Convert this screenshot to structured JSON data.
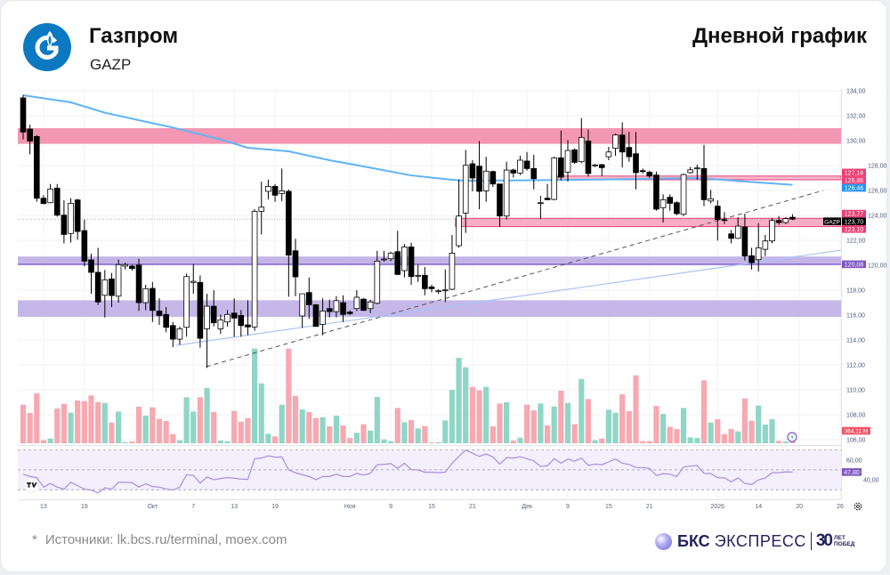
{
  "header": {
    "company": "Газпром",
    "ticker": "GAZP",
    "chart_type": "Дневной график"
  },
  "footer": {
    "star": "*",
    "source": "Источники: lk.bcs.ru/terminal, moex.com"
  },
  "brand": {
    "name_bold": "БКС",
    "name_regular": "ЭКСПРЕСС",
    "anniversary_number": "30",
    "anniversary_line1": "ЛЕТ",
    "anniversary_line2": "ПОБЕД"
  },
  "colors": {
    "up_candle": "#ffffff",
    "down_candle": "#000000",
    "volume_up": "#8fd6c6",
    "volume_down": "#f7a8b0",
    "ma": "#5fb4f5",
    "rsi": "#a98ee0",
    "logo_blue": "#0a79c2"
  },
  "chart_data": {
    "type": "candlestick",
    "symbol": "GAZP",
    "price_ticks": [
      106,
      108,
      110,
      112,
      114,
      116,
      118,
      120,
      122,
      124,
      126,
      128,
      130,
      132,
      134
    ],
    "x_ticks": [
      {
        "index": 3,
        "label": "13"
      },
      {
        "index": 9,
        "label": "19"
      },
      {
        "index": 19,
        "label": "Окт"
      },
      {
        "index": 25,
        "label": "7"
      },
      {
        "index": 31,
        "label": "13"
      },
      {
        "index": 37,
        "label": "19"
      },
      {
        "index": 48,
        "label": "Ноя"
      },
      {
        "index": 54,
        "label": "9"
      },
      {
        "index": 60,
        "label": "15"
      },
      {
        "index": 66,
        "label": "21"
      },
      {
        "index": 74,
        "label": "Дек"
      },
      {
        "index": 80,
        "label": "9"
      },
      {
        "index": 86,
        "label": "15"
      },
      {
        "index": 92,
        "label": "21"
      },
      {
        "index": 102,
        "label": "2026"
      },
      {
        "index": 108,
        "label": "14"
      },
      {
        "index": 114,
        "label": "20"
      },
      {
        "index": 120,
        "label": "26"
      }
    ],
    "candles_ohlc": [
      [
        133.43,
        133.66,
        130.1,
        130.69
      ],
      [
        130.93,
        131.28,
        128.9,
        129.97
      ],
      [
        130.33,
        130.45,
        125.1,
        125.38
      ],
      [
        125.38,
        125.62,
        124.9,
        124.95
      ],
      [
        125.02,
        126.52,
        124.97,
        126.12
      ],
      [
        126.19,
        126.52,
        123.9,
        124.02
      ],
      [
        124.02,
        125.21,
        121.76,
        122.47
      ],
      [
        122.55,
        125.38,
        121.83,
        124.97
      ],
      [
        125.24,
        125.33,
        122.05,
        122.71
      ],
      [
        122.78,
        123.66,
        119.93,
        120.33
      ],
      [
        120.43,
        120.93,
        117.71,
        119.43
      ],
      [
        119.43,
        121.4,
        116.81,
        117.05
      ],
      [
        117.59,
        119.62,
        115.81,
        118.83
      ],
      [
        118.9,
        119.38,
        116.64,
        117.57
      ],
      [
        117.52,
        120.45,
        117.0,
        120.05
      ],
      [
        119.93,
        120.21,
        119.66,
        120.05
      ],
      [
        119.93,
        120.05,
        119.57,
        119.74
      ],
      [
        120.02,
        120.52,
        116.33,
        117.0
      ],
      [
        117.0,
        118.43,
        116.4,
        118.12
      ],
      [
        118.14,
        118.66,
        115.45,
        116.38
      ],
      [
        116.33,
        117.35,
        115.21,
        115.97
      ],
      [
        116.05,
        116.64,
        114.62,
        115.02
      ],
      [
        115.16,
        115.45,
        113.43,
        114.07
      ],
      [
        114.07,
        115.09,
        113.62,
        114.9
      ],
      [
        115.02,
        119.33,
        114.26,
        119.09
      ],
      [
        118.62,
        120.09,
        117.71,
        118.71
      ],
      [
        118.62,
        119.19,
        113.38,
        114.14
      ],
      [
        114.9,
        117.71,
        111.76,
        116.71
      ],
      [
        116.71,
        118.0,
        115.09,
        115.38
      ],
      [
        114.9,
        116.05,
        114.5,
        115.62
      ],
      [
        115.45,
        116.4,
        115.09,
        116.05
      ],
      [
        116.16,
        117.35,
        114.26,
        115.76
      ],
      [
        115.97,
        116.4,
        114.26,
        115.16
      ],
      [
        115.21,
        117.19,
        114.38,
        115.05
      ],
      [
        115.05,
        124.5,
        114.74,
        124.33
      ],
      [
        124.33,
        126.71,
        122.47,
        124.66
      ],
      [
        125.93,
        126.88,
        125.28,
        126.33
      ],
      [
        126.33,
        126.52,
        125.09,
        125.62
      ],
      [
        125.76,
        127.76,
        125.14,
        125.97
      ],
      [
        125.93,
        126.09,
        117.47,
        120.81
      ],
      [
        121.16,
        122.12,
        117.52,
        119.07
      ],
      [
        115.93,
        117.71,
        114.97,
        117.71
      ],
      [
        117.81,
        119.02,
        115.69,
        116.83
      ],
      [
        116.83,
        116.88,
        115.09,
        115.09
      ],
      [
        115.26,
        117.35,
        114.38,
        116.33
      ],
      [
        116.52,
        117.24,
        115.81,
        116.28
      ],
      [
        116.28,
        117.52,
        115.81,
        117.16
      ],
      [
        117.0,
        117.59,
        115.45,
        116.05
      ],
      [
        116.24,
        116.4,
        116.0,
        116.12
      ],
      [
        116.52,
        118.0,
        116.33,
        117.43
      ],
      [
        117.28,
        117.35,
        116.33,
        116.38
      ],
      [
        116.52,
        117.24,
        116.16,
        117.05
      ],
      [
        116.95,
        121.16,
        116.88,
        120.33
      ],
      [
        120.45,
        121.16,
        120.28,
        120.5
      ],
      [
        120.52,
        121.09,
        120.33,
        120.97
      ],
      [
        121.09,
        122.76,
        119.21,
        119.26
      ],
      [
        119.57,
        121.71,
        119.02,
        121.47
      ],
      [
        121.47,
        121.81,
        118.43,
        119.09
      ],
      [
        119.14,
        120.05,
        118.66,
        119.19
      ],
      [
        119.19,
        119.86,
        117.59,
        118.12
      ],
      [
        118.26,
        118.43,
        117.83,
        118.12
      ],
      [
        117.9,
        118.07,
        117.71,
        117.95
      ],
      [
        118.0,
        119.66,
        117.05,
        118.02
      ],
      [
        118.07,
        122.43,
        118.0,
        120.97
      ],
      [
        121.57,
        126.88,
        121.4,
        123.95
      ],
      [
        124.19,
        129.26,
        122.59,
        128.02
      ],
      [
        128.14,
        128.43,
        125.93,
        127.0
      ],
      [
        127.95,
        129.97,
        124.5,
        125.93
      ],
      [
        125.97,
        128.71,
        125.09,
        127.55
      ],
      [
        127.52,
        127.59,
        126.28,
        126.52
      ],
      [
        126.52,
        126.52,
        123.07,
        123.95
      ],
      [
        123.95,
        128.31,
        123.66,
        127.64
      ],
      [
        127.64,
        127.76,
        127.04,
        127.4
      ],
      [
        127.4,
        128.78,
        127.24,
        128.43
      ],
      [
        128.36,
        129.09,
        127.59,
        127.76
      ],
      [
        127.76,
        128.86,
        126.09,
        126.95
      ],
      [
        124.97,
        125.57,
        123.71,
        125.02
      ],
      [
        125.38,
        126.52,
        125.21,
        125.26
      ],
      [
        125.28,
        128.71,
        125.21,
        128.62
      ],
      [
        128.62,
        130.81,
        126.81,
        127.07
      ],
      [
        127.47,
        130.05,
        126.71,
        129.21
      ],
      [
        129.26,
        129.38,
        128.14,
        128.26
      ],
      [
        128.31,
        131.81,
        128.19,
        130.26
      ],
      [
        129.97,
        130.88,
        127.12,
        127.36
      ],
      [
        128.0,
        128.14,
        127.88,
        128.05
      ],
      [
        128.07,
        128.14,
        127.16,
        127.83
      ],
      [
        128.71,
        129.5,
        128.43,
        129.09
      ],
      [
        129.38,
        130.57,
        128.78,
        130.45
      ],
      [
        130.45,
        131.47,
        127.83,
        129.09
      ],
      [
        129.45,
        130.69,
        128.31,
        128.71
      ],
      [
        128.95,
        130.69,
        126.09,
        127.43
      ],
      [
        127.59,
        127.76,
        127.36,
        127.55
      ],
      [
        127.47,
        127.59,
        127.0,
        127.16
      ],
      [
        127.24,
        127.52,
        124.38,
        124.5
      ],
      [
        124.62,
        125.69,
        123.43,
        125.26
      ],
      [
        125.45,
        125.69,
        124.38,
        124.97
      ],
      [
        125.02,
        125.14,
        124.02,
        124.14
      ],
      [
        124.09,
        127.36,
        123.95,
        127.28
      ],
      [
        127.43,
        127.9,
        127.36,
        127.66
      ],
      [
        127.76,
        128.07,
        126.88,
        127.81
      ],
      [
        127.76,
        129.66,
        124.74,
        125.26
      ],
      [
        125.16,
        126.05,
        124.97,
        125.33
      ],
      [
        124.74,
        125.21,
        121.98,
        123.66
      ],
      [
        123.66,
        124.26,
        123.31,
        123.59
      ],
      [
        122.52,
        122.83,
        121.76,
        122.16
      ],
      [
        122.16,
        123.85,
        122.12,
        123.14
      ],
      [
        123.07,
        124.14,
        120.38,
        120.74
      ],
      [
        120.76,
        121.4,
        119.66,
        120.21
      ],
      [
        120.45,
        123.38,
        119.5,
        121.4
      ],
      [
        121.28,
        122.43,
        120.74,
        121.95
      ],
      [
        121.95,
        123.78,
        121.76,
        123.59
      ],
      [
        123.59,
        123.95,
        123.24,
        123.43
      ],
      [
        123.43,
        123.85,
        123.31,
        123.74
      ],
      [
        123.85,
        124.09,
        123.62,
        123.7
      ]
    ],
    "volume_millions": [
      2600,
      2040,
      3360,
      200,
      320,
      2340,
      2660,
      2060,
      2880,
      2840,
      3220,
      2780,
      2720,
      1400,
      2140,
      80,
      120,
      2460,
      1860,
      2420,
      1640,
      1500,
      620,
      200,
      3100,
      2140,
      3100,
      3720,
      2100,
      180,
      140,
      2180,
      1460,
      1700,
      6380,
      4040,
      640,
      460,
      2600,
      6380,
      3200,
      2280,
      2100,
      1700,
      1760,
      1140,
      1860,
      1200,
      360,
      700,
      1280,
      860,
      3120,
      260,
      140,
      2380,
      1420,
      1560,
      1000,
      1160,
      60,
      80,
      1540,
      3600,
      5760,
      5120,
      3800,
      3560,
      3800,
      1140,
      2680,
      2760,
      180,
      380,
      2600,
      2220,
      2680,
      1200,
      2480,
      3540,
      2720,
      1280,
      4340,
      2980,
      200,
      320,
      2260,
      2060,
      3300,
      2160,
      4580,
      140,
      140,
      2520,
      1980,
      1100,
      960,
      2380,
      400,
      360,
      4240,
      1400,
      1620,
      620,
      960,
      800,
      3020,
      1520,
      2540,
      1260,
      1620,
      160,
      120,
      364.11
    ],
    "rsi": [
      45.7,
      43.3,
      42.2,
      32.6,
      36.4,
      32.6,
      30.6,
      37.5,
      34.1,
      30.6,
      29.7,
      26.8,
      32.0,
      30.6,
      37.5,
      37.5,
      37.0,
      32.6,
      36.1,
      33.2,
      32.6,
      30.9,
      29.7,
      32.6,
      45.1,
      44.5,
      36.7,
      42.8,
      40.1,
      41.3,
      42.2,
      41.6,
      40.7,
      40.4,
      61.3,
      61.9,
      64.2,
      62.8,
      63.1,
      50.0,
      47.1,
      45.1,
      43.3,
      40.1,
      43.3,
      43.3,
      45.7,
      43.3,
      43.3,
      46.5,
      44.8,
      46.5,
      55.2,
      55.5,
      56.4,
      51.5,
      56.7,
      50.2,
      50.0,
      47.7,
      47.7,
      47.1,
      47.7,
      56.7,
      63.6,
      70.0,
      66.8,
      63.6,
      66.0,
      63.1,
      55.8,
      62.2,
      61.9,
      63.3,
      61.3,
      59.0,
      53.5,
      54.1,
      61.3,
      56.7,
      61.0,
      58.7,
      61.9,
      54.6,
      55.8,
      55.2,
      58.1,
      61.0,
      56.7,
      55.5,
      52.3,
      52.3,
      51.5,
      44.2,
      46.2,
      45.7,
      43.3,
      52.9,
      53.8,
      54.4,
      46.5,
      46.2,
      42.2,
      41.9,
      38.1,
      41.9,
      36.4,
      35.2,
      39.9,
      41.9,
      47.1,
      47.1,
      48.0,
      47.8
    ],
    "rsi_levels": [
      70,
      50,
      30
    ],
    "rsi_ticks": [
      {
        "value": 60,
        "label": "60,00"
      },
      {
        "value": 40,
        "label": "40,00"
      }
    ],
    "moving_average": [
      [
        0,
        133.64
      ],
      [
        7,
        133.07
      ],
      [
        12,
        132.24
      ],
      [
        18,
        131.52
      ],
      [
        22,
        131.05
      ],
      [
        29,
        130.09
      ],
      [
        33,
        129.43
      ],
      [
        39,
        129.14
      ],
      [
        45,
        128.43
      ],
      [
        50,
        127.93
      ],
      [
        57,
        127.21
      ],
      [
        63,
        126.86
      ],
      [
        65,
        126.79
      ],
      [
        75,
        126.82
      ],
      [
        87,
        126.89
      ],
      [
        98,
        127.0
      ],
      [
        102,
        126.88
      ],
      [
        108,
        126.64
      ],
      [
        113,
        126.45
      ]
    ],
    "zones": [
      {
        "top": 131.0,
        "bottom": 129.74,
        "start_index": null,
        "fill": "#f291b0"
      },
      {
        "top": 127.16,
        "bottom": 126.86,
        "start_index": 79,
        "fill": "#f7b3c9",
        "border": "#e8457a"
      },
      {
        "top": 123.77,
        "bottom": 123.1,
        "start_index": 64,
        "fill": "#f7a9c2",
        "border": "#e8457a"
      },
      {
        "top": 120.7,
        "bottom": 120.0,
        "start_index": null,
        "fill": "#c2b1e6",
        "line": 120.08,
        "line_color": "#8e6fd4"
      },
      {
        "top": 117.19,
        "bottom": 115.86,
        "start_index": null,
        "fill": "#c3b3e8"
      }
    ],
    "trendlines": [
      {
        "from": [
          26.9,
          111.86
        ],
        "to": [
          117.5,
          126.0
        ],
        "style": "dashed",
        "color": "#555555"
      },
      {
        "from": [
          22.5,
          113.57
        ],
        "to": [
          120.1,
          121.21
        ],
        "style": "solid",
        "color": "#a9c4f5"
      }
    ],
    "last_price": 123.7,
    "price_labels": [
      {
        "price": 127.16,
        "text": "127,16",
        "color": "#ec3f74"
      },
      {
        "price": 126.86,
        "text": "126,86",
        "color": "#ec3f74"
      },
      {
        "price": 126.46,
        "text": "126,46",
        "color": "#2196f3"
      },
      {
        "price": 123.77,
        "text": "123,77",
        "color": "#ec3f74"
      },
      {
        "price": 123.7,
        "text": "123,70",
        "color": "#000000",
        "tag": "GAZP"
      },
      {
        "price": 123.1,
        "text": "123,10",
        "color": "#ec3f74"
      },
      {
        "price": 120.08,
        "text": "120,08",
        "color": "#7e57c2"
      }
    ],
    "volume_label": {
      "text": "364,11 M",
      "color": "#f2566a"
    },
    "rsi_label": {
      "value": 47.8,
      "text": "47,80",
      "color": "#7e57c2"
    }
  }
}
